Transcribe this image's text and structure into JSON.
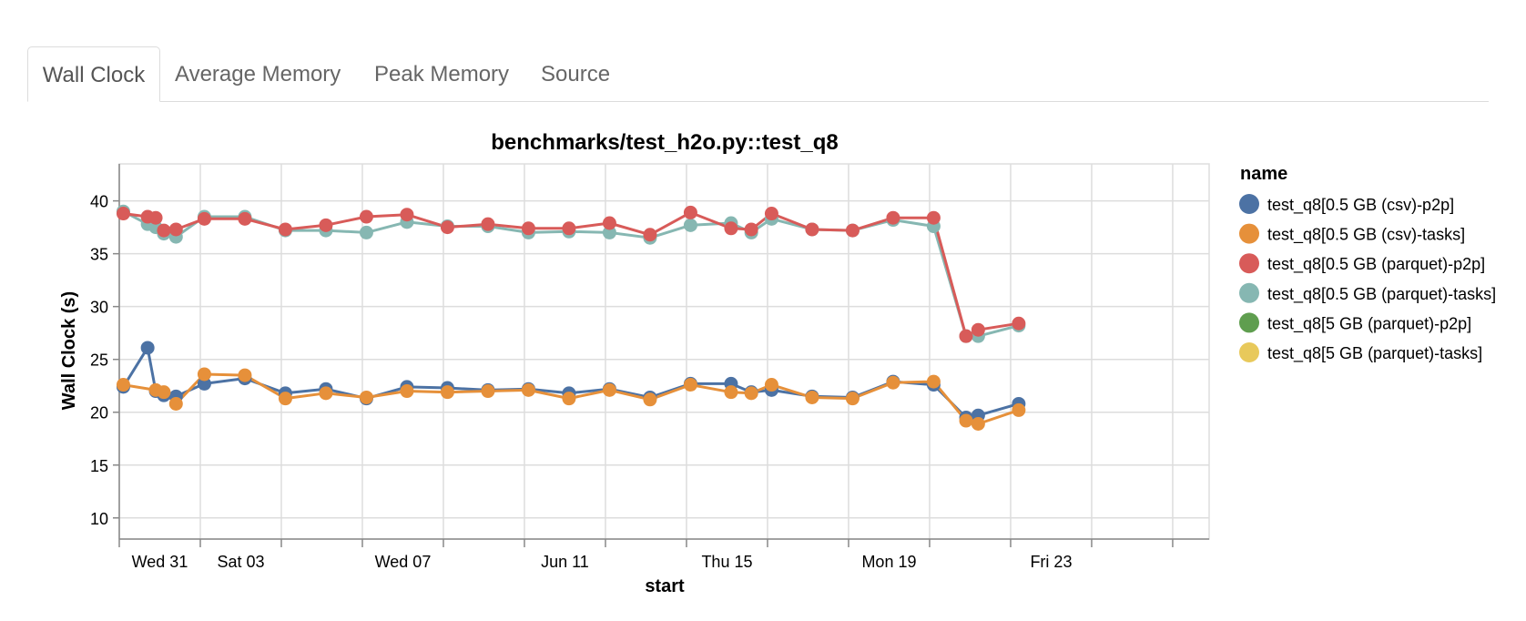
{
  "tabs": [
    {
      "label": "Wall Clock",
      "active": true
    },
    {
      "label": "Average Memory",
      "active": false
    },
    {
      "label": "Peak Memory",
      "active": false
    },
    {
      "label": "Source",
      "active": false
    }
  ],
  "chart_data": {
    "type": "line",
    "title": "benchmarks/test_h2o.py::test_q8",
    "xlabel": "start",
    "ylabel": "Wall Clock (s)",
    "ylim": [
      8,
      43.5
    ],
    "y_ticks": [
      10,
      15,
      20,
      25,
      30,
      35,
      40
    ],
    "x_range": [
      30.0,
      56.9
    ],
    "x_tick_marks": [
      30,
      32,
      34,
      36,
      38,
      40,
      42,
      44,
      46,
      48,
      50,
      52,
      54,
      56
    ],
    "x_tick_labels": [
      {
        "x": 31,
        "label": "Wed 31"
      },
      {
        "x": 33,
        "label": "Sat 03"
      },
      {
        "x": 37,
        "label": "Wed 07"
      },
      {
        "x": 41,
        "label": "Jun 11"
      },
      {
        "x": 45,
        "label": "Thu 15"
      },
      {
        "x": 49,
        "label": "Mon 19"
      },
      {
        "x": 53,
        "label": "Fri 23"
      }
    ],
    "grid": true,
    "legend": {
      "title": "name",
      "placement": "right"
    },
    "series": [
      {
        "name": "test_q8[0.5 GB (csv)-p2p]",
        "color": "#4c72a4",
        "points": [
          [
            30.1,
            22.4
          ],
          [
            30.7,
            26.1
          ],
          [
            30.9,
            22
          ],
          [
            31.1,
            21.6
          ],
          [
            31.4,
            21.5
          ],
          [
            32.1,
            22.7
          ],
          [
            33.1,
            23.2
          ],
          [
            34.1,
            21.8
          ],
          [
            35.1,
            22.2
          ],
          [
            36.1,
            21.3
          ],
          [
            37.1,
            22.4
          ],
          [
            38.1,
            22.3
          ],
          [
            39.1,
            22.1
          ],
          [
            40.1,
            22.2
          ],
          [
            41.1,
            21.8
          ],
          [
            42.1,
            22.2
          ],
          [
            43.1,
            21.4
          ],
          [
            44.1,
            22.7
          ],
          [
            45.1,
            22.7
          ],
          [
            45.6,
            21.9
          ],
          [
            46.1,
            22.1
          ],
          [
            47.1,
            21.5
          ],
          [
            48.1,
            21.4
          ],
          [
            49.1,
            22.9
          ],
          [
            50.1,
            22.6
          ],
          [
            50.9,
            19.5
          ],
          [
            51.2,
            19.7
          ],
          [
            52.2,
            20.8
          ]
        ]
      },
      {
        "name": "test_q8[0.5 GB (csv)-tasks]",
        "color": "#e6903a",
        "points": [
          [
            30.1,
            22.6
          ],
          [
            30.9,
            22.1
          ],
          [
            31.1,
            21.9
          ],
          [
            31.4,
            20.8
          ],
          [
            32.1,
            23.6
          ],
          [
            33.1,
            23.5
          ],
          [
            34.1,
            21.3
          ],
          [
            35.1,
            21.8
          ],
          [
            36.1,
            21.4
          ],
          [
            37.1,
            22
          ],
          [
            38.1,
            21.9
          ],
          [
            39.1,
            22
          ],
          [
            40.1,
            22.1
          ],
          [
            41.1,
            21.3
          ],
          [
            42.1,
            22.1
          ],
          [
            43.1,
            21.2
          ],
          [
            44.1,
            22.6
          ],
          [
            45.1,
            21.9
          ],
          [
            45.6,
            21.8
          ],
          [
            46.1,
            22.6
          ],
          [
            47.1,
            21.4
          ],
          [
            48.1,
            21.3
          ],
          [
            49.1,
            22.8
          ],
          [
            50.1,
            22.9
          ],
          [
            50.9,
            19.2
          ],
          [
            51.2,
            18.9
          ],
          [
            52.2,
            20.2
          ]
        ]
      },
      {
        "name": "test_q8[0.5 GB (parquet)-tasks]",
        "color": "#86b7b2",
        "points": [
          [
            30.1,
            39
          ],
          [
            30.7,
            37.8
          ],
          [
            30.9,
            37.5
          ],
          [
            31.1,
            36.9
          ],
          [
            31.4,
            36.6
          ],
          [
            32.1,
            38.5
          ],
          [
            33.1,
            38.5
          ],
          [
            34.1,
            37.2
          ],
          [
            35.1,
            37.2
          ],
          [
            36.1,
            37
          ],
          [
            37.1,
            38
          ],
          [
            38.1,
            37.6
          ],
          [
            39.1,
            37.6
          ],
          [
            40.1,
            37
          ],
          [
            41.1,
            37.1
          ],
          [
            42.1,
            37
          ],
          [
            43.1,
            36.5
          ],
          [
            44.1,
            37.7
          ],
          [
            45.1,
            37.9
          ],
          [
            45.6,
            37
          ],
          [
            46.1,
            38.3
          ],
          [
            47.1,
            37.3
          ],
          [
            48.1,
            37.2
          ],
          [
            49.1,
            38.2
          ],
          [
            50.1,
            37.6
          ],
          [
            50.9,
            27.2
          ],
          [
            51.2,
            27.2
          ],
          [
            52.2,
            28.2
          ]
        ]
      },
      {
        "name": "test_q8[0.5 GB (parquet)-p2p]",
        "color": "#d85b59",
        "points": [
          [
            30.1,
            38.8
          ],
          [
            30.7,
            38.5
          ],
          [
            30.9,
            38.4
          ],
          [
            31.1,
            37.2
          ],
          [
            31.4,
            37.3
          ],
          [
            32.1,
            38.3
          ],
          [
            33.1,
            38.3
          ],
          [
            34.1,
            37.3
          ],
          [
            35.1,
            37.7
          ],
          [
            36.1,
            38.5
          ],
          [
            37.1,
            38.7
          ],
          [
            38.1,
            37.5
          ],
          [
            39.1,
            37.8
          ],
          [
            40.1,
            37.4
          ],
          [
            41.1,
            37.4
          ],
          [
            42.1,
            37.9
          ],
          [
            43.1,
            36.8
          ],
          [
            44.1,
            38.9
          ],
          [
            45.1,
            37.4
          ],
          [
            45.6,
            37.3
          ],
          [
            46.1,
            38.8
          ],
          [
            47.1,
            37.3
          ],
          [
            48.1,
            37.2
          ],
          [
            49.1,
            38.4
          ],
          [
            50.1,
            38.4
          ],
          [
            50.9,
            27.2
          ],
          [
            51.2,
            27.8
          ],
          [
            52.2,
            28.4
          ]
        ]
      }
    ],
    "legend_items": [
      {
        "name": "test_q8[0.5 GB (csv)-p2p]",
        "color": "#4c72a4"
      },
      {
        "name": "test_q8[0.5 GB (csv)-tasks]",
        "color": "#e6903a"
      },
      {
        "name": "test_q8[0.5 GB (parquet)-p2p]",
        "color": "#d85b59"
      },
      {
        "name": "test_q8[0.5 GB (parquet)-tasks]",
        "color": "#86b7b2"
      },
      {
        "name": "test_q8[5 GB (parquet)-p2p]",
        "color": "#5f9e4f"
      },
      {
        "name": "test_q8[5 GB (parquet)-tasks]",
        "color": "#e8c95b"
      }
    ]
  }
}
